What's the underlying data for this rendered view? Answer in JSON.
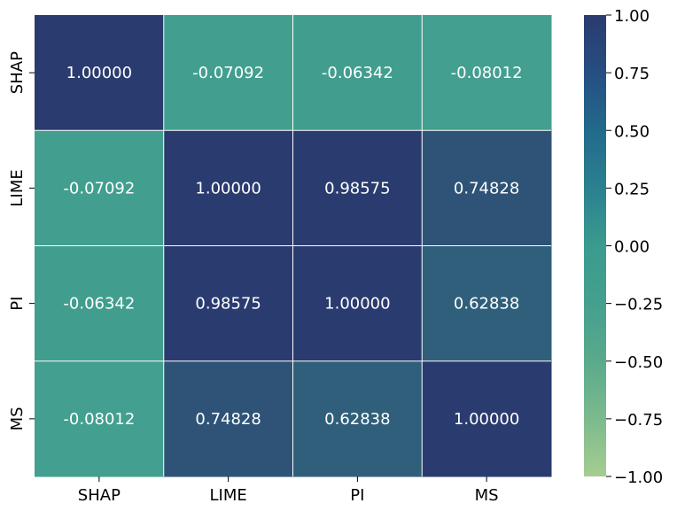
{
  "chart_data": {
    "type": "heatmap",
    "title": "",
    "xlabel": "",
    "ylabel": "",
    "x_labels": [
      "SHAP",
      "LIME",
      "PI",
      "MS"
    ],
    "y_labels": [
      "SHAP",
      "LIME",
      "PI",
      "MS"
    ],
    "values": [
      [
        1.0,
        -0.07092,
        -0.06342,
        -0.08012
      ],
      [
        -0.07092,
        1.0,
        0.98575,
        0.74828
      ],
      [
        -0.06342,
        0.98575,
        1.0,
        0.62838
      ],
      [
        -0.08012,
        0.74828,
        0.62838,
        1.0
      ]
    ],
    "cell_labels": [
      [
        "1.00000",
        "-0.07092",
        "-0.06342",
        "-0.08012"
      ],
      [
        "-0.07092",
        "1.00000",
        "0.98575",
        "0.74828"
      ],
      [
        "-0.06342",
        "0.98575",
        "1.00000",
        "0.62838"
      ],
      [
        "-0.08012",
        "0.74828",
        "0.62838",
        "1.00000"
      ]
    ],
    "vmin": -1.0,
    "vmax": 1.0,
    "colormap": "crest",
    "colormap_stops": [
      "#a5cd90",
      "#3a9b8f",
      "#2a3b6f"
    ],
    "gridline_color": "#ffffff",
    "colorbar": {
      "position": "right",
      "ticks": [
        1.0,
        0.75,
        0.5,
        0.25,
        0.0,
        -0.25,
        -0.5,
        -0.75,
        -1.0
      ],
      "tick_labels": [
        "1.00",
        "0.75",
        "0.50",
        "0.25",
        "0.00",
        "−0.25",
        "−0.50",
        "−0.75",
        "−1.00"
      ]
    }
  }
}
